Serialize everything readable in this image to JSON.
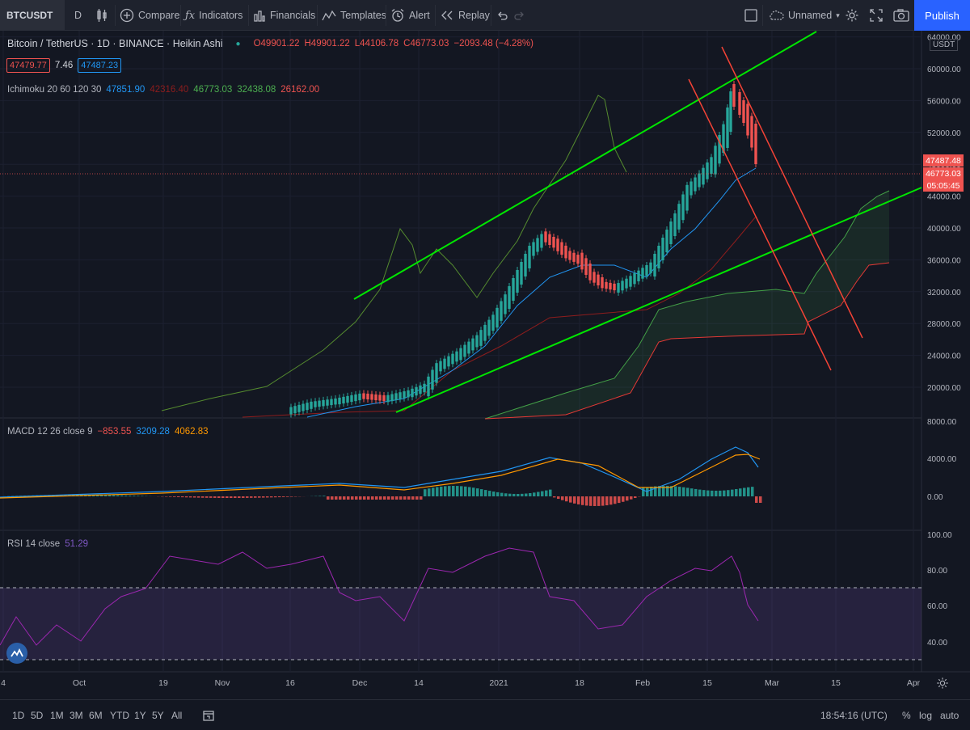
{
  "toolbar": {
    "symbol": "BTCUSDT",
    "interval": "D",
    "compare": "Compare",
    "indicators": "Indicators",
    "financials": "Financials",
    "templates": "Templates",
    "alert": "Alert",
    "replay": "Replay",
    "layout_name": "Unnamed",
    "publish": "Publish"
  },
  "main_legend": {
    "title": "Bitcoin / TetherUS · 1D · BINANCE · Heikin Ashi",
    "open": "O49901.22",
    "high": "H49901.22",
    "low": "L44106.78",
    "close": "C46773.03",
    "change": "−2093.48 (−4.28%)",
    "bid": "47479.77",
    "spread": "7.46",
    "ask": "47487.23"
  },
  "ichimoku_legend": {
    "name": "Ichimoku 20 60 120 30",
    "v1": "47851.90",
    "v2": "42316.40",
    "v3": "46773.03",
    "v4": "32438.08",
    "v5": "26162.00"
  },
  "macd_legend": {
    "name": "MACD 12 26 close 9",
    "hist": "−853.55",
    "macd": "3209.28",
    "signal": "4062.83"
  },
  "rsi_legend": {
    "name": "RSI 14 close",
    "value": "51.29"
  },
  "price_axis": {
    "currency": "USDT",
    "ticks": [
      "64000.00",
      "60000.00",
      "56000.00",
      "52000.00",
      "48000.00",
      "44000.00",
      "40000.00",
      "36000.00",
      "32000.00",
      "28000.00",
      "24000.00",
      "20000.00"
    ],
    "last_price": "47487.48",
    "close_price": "46773.03",
    "countdown": "05:05:45"
  },
  "macd_axis": {
    "ticks": [
      "8000.00",
      "4000.00",
      "0.00"
    ]
  },
  "rsi_axis": {
    "ticks": [
      "100.00",
      "80.00",
      "60.00",
      "40.00"
    ]
  },
  "time_axis": {
    "labels": [
      "4",
      "Oct",
      "19",
      "Nov",
      "16",
      "Dec",
      "14",
      "2021",
      "18",
      "Feb",
      "15",
      "Mar",
      "15",
      "Apr"
    ]
  },
  "bottom": {
    "ranges": [
      "1D",
      "5D",
      "1M",
      "3M",
      "6M",
      "YTD",
      "1Y",
      "5Y",
      "All"
    ],
    "time": "18:54:16 (UTC)",
    "percent": "%",
    "log": "log",
    "auto": "auto"
  },
  "colors": {
    "up": "#26a69a",
    "down": "#ef5350",
    "trendline_green": "#00e600",
    "trendline_red": "#f44336",
    "background": "#131722"
  }
}
